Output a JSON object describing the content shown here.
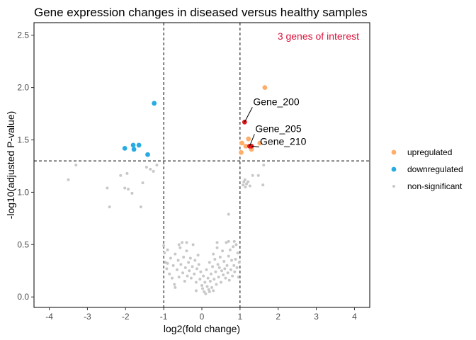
{
  "chart_data": {
    "type": "scatter",
    "title": "Gene expression changes in diseased versus healthy samples",
    "xlabel": "log2(fold change)",
    "ylabel": "-log10(adjusted P-value)",
    "xlim": [
      -4.4,
      4.4
    ],
    "ylim": [
      -0.1,
      2.62
    ],
    "xticks": [
      -4,
      -3,
      -2,
      -1,
      0,
      1,
      2,
      3,
      4
    ],
    "yticks": [
      0.0,
      0.5,
      1.0,
      1.5,
      2.0,
      2.5
    ],
    "ytick_labels": [
      "0.0",
      "0.5",
      "1.0",
      "1.5",
      "2.0",
      "2.5"
    ],
    "thresholds": {
      "x": [
        -1,
        1
      ],
      "y": 1.3
    },
    "grid": false,
    "legend_position": "right",
    "annotation": {
      "text": "3 genes of interest",
      "color": "#dc143c"
    },
    "series": [
      {
        "name": "upregulated",
        "color": "#fdae6b",
        "points": [
          [
            1.65,
            2.0
          ],
          [
            1.22,
            1.51
          ],
          [
            1.05,
            1.47
          ],
          [
            1.52,
            1.47
          ],
          [
            1.03,
            1.38
          ],
          [
            1.3,
            1.41
          ],
          [
            1.15,
            1.44
          ]
        ]
      },
      {
        "name": "downregulated",
        "color": "#29abe2",
        "points": [
          [
            -1.25,
            1.85
          ],
          [
            -2.02,
            1.42
          ],
          [
            -1.8,
            1.45
          ],
          [
            -1.65,
            1.45
          ],
          [
            -1.78,
            1.41
          ],
          [
            -1.42,
            1.36
          ]
        ]
      },
      {
        "name": "non-significant",
        "color": "#c8c8c8",
        "points": [
          [
            -3.3,
            1.26
          ],
          [
            -3.5,
            1.12
          ],
          [
            -2.48,
            1.04
          ],
          [
            -2.42,
            0.86
          ],
          [
            -2.13,
            1.16
          ],
          [
            -2.02,
            1.04
          ],
          [
            -1.93,
            1.03
          ],
          [
            -1.96,
            1.18
          ],
          [
            -1.83,
            0.99
          ],
          [
            -1.55,
            1.09
          ],
          [
            -1.6,
            0.86
          ],
          [
            -1.45,
            1.24
          ],
          [
            -1.35,
            1.22
          ],
          [
            -1.27,
            1.2
          ],
          [
            -1.18,
            1.26
          ],
          [
            1.08,
            1.07
          ],
          [
            1.1,
            1.1
          ],
          [
            1.14,
            1.05
          ],
          [
            1.17,
            1.08
          ],
          [
            1.21,
            1.1
          ],
          [
            1.26,
            1.06
          ],
          [
            1.33,
            1.16
          ],
          [
            1.48,
            1.16
          ],
          [
            1.62,
            1.26
          ],
          [
            1.6,
            1.07
          ],
          [
            1.13,
            1.12
          ],
          [
            0.7,
            0.79
          ],
          [
            -1.0,
            0.49
          ],
          [
            -0.98,
            0.42
          ],
          [
            -0.95,
            0.33
          ],
          [
            -0.92,
            0.27
          ],
          [
            -0.9,
            0.45
          ],
          [
            -0.85,
            0.22
          ],
          [
            -0.82,
            0.37
          ],
          [
            -0.78,
            0.18
          ],
          [
            -0.75,
            0.3
          ],
          [
            -0.72,
            0.12
          ],
          [
            -0.7,
            0.41
          ],
          [
            -0.65,
            0.26
          ],
          [
            -0.62,
            0.35
          ],
          [
            -0.6,
            0.19
          ],
          [
            -0.57,
            0.47
          ],
          [
            -0.55,
            0.31
          ],
          [
            -0.52,
            0.52
          ],
          [
            -0.5,
            0.23
          ],
          [
            -0.48,
            0.38
          ],
          [
            -0.45,
            0.15
          ],
          [
            -0.43,
            0.28
          ],
          [
            -0.4,
            0.44
          ],
          [
            -0.38,
            0.2
          ],
          [
            -0.35,
            0.33
          ],
          [
            -0.33,
            0.25
          ],
          [
            -0.3,
            0.37
          ],
          [
            -0.28,
            0.18
          ],
          [
            -0.25,
            0.29
          ],
          [
            -0.23,
            0.5
          ],
          [
            -0.2,
            0.22
          ],
          [
            -0.18,
            0.35
          ],
          [
            -0.15,
            0.14
          ],
          [
            -0.13,
            0.27
          ],
          [
            -0.1,
            0.4
          ],
          [
            -0.08,
            0.31
          ],
          [
            -0.05,
            0.17
          ],
          [
            -0.03,
            0.24
          ],
          [
            0.0,
            0.11
          ],
          [
            0.02,
            0.08
          ],
          [
            0.04,
            0.2
          ],
          [
            0.06,
            0.05
          ],
          [
            0.08,
            0.14
          ],
          [
            0.1,
            0.03
          ],
          [
            0.12,
            0.26
          ],
          [
            0.14,
            0.1
          ],
          [
            0.16,
            0.18
          ],
          [
            0.18,
            0.07
          ],
          [
            0.2,
            0.33
          ],
          [
            0.22,
            0.15
          ],
          [
            0.24,
            0.22
          ],
          [
            0.26,
            0.09
          ],
          [
            0.28,
            0.29
          ],
          [
            0.3,
            0.41
          ],
          [
            0.32,
            0.17
          ],
          [
            0.34,
            0.36
          ],
          [
            0.36,
            0.24
          ],
          [
            0.38,
            0.12
          ],
          [
            0.4,
            0.47
          ],
          [
            0.42,
            0.31
          ],
          [
            0.44,
            0.19
          ],
          [
            0.46,
            0.28
          ],
          [
            0.48,
            0.38
          ],
          [
            0.5,
            0.14
          ],
          [
            0.52,
            0.25
          ],
          [
            0.54,
            0.44
          ],
          [
            0.56,
            0.21
          ],
          [
            0.58,
            0.34
          ],
          [
            0.6,
            0.27
          ],
          [
            0.62,
            0.18
          ],
          [
            0.64,
            0.52
          ],
          [
            0.66,
            0.3
          ],
          [
            0.68,
            0.23
          ],
          [
            0.7,
            0.39
          ],
          [
            0.72,
            0.16
          ],
          [
            0.74,
            0.45
          ],
          [
            0.76,
            0.26
          ],
          [
            0.78,
            0.35
          ],
          [
            0.8,
            0.2
          ],
          [
            0.82,
            0.48
          ],
          [
            0.84,
            0.3
          ],
          [
            0.86,
            0.24
          ],
          [
            0.88,
            0.36
          ],
          [
            0.9,
            0.5
          ],
          [
            0.92,
            0.28
          ],
          [
            0.94,
            0.42
          ],
          [
            0.96,
            0.19
          ],
          [
            0.98,
            0.33
          ],
          [
            -0.6,
            0.5
          ],
          [
            -0.4,
            0.52
          ],
          [
            0.4,
            0.52
          ],
          [
            0.7,
            0.53
          ],
          [
            0.85,
            0.53
          ],
          [
            -0.9,
            0.32
          ],
          [
            -0.7,
            0.09
          ],
          [
            0.2,
            0.05
          ],
          [
            0.3,
            0.06
          ],
          [
            -0.15,
            0.06
          ]
        ]
      }
    ],
    "highlighted_genes": [
      {
        "name": "Gene_200",
        "x": 1.12,
        "y": 1.67,
        "color": "#e31a1c"
      },
      {
        "name": "Gene_205",
        "x": 1.25,
        "y": 1.44,
        "color": "#e31a1c"
      },
      {
        "name": "Gene_210",
        "x": 1.3,
        "y": 1.44,
        "color": "#e31a1c"
      }
    ]
  }
}
